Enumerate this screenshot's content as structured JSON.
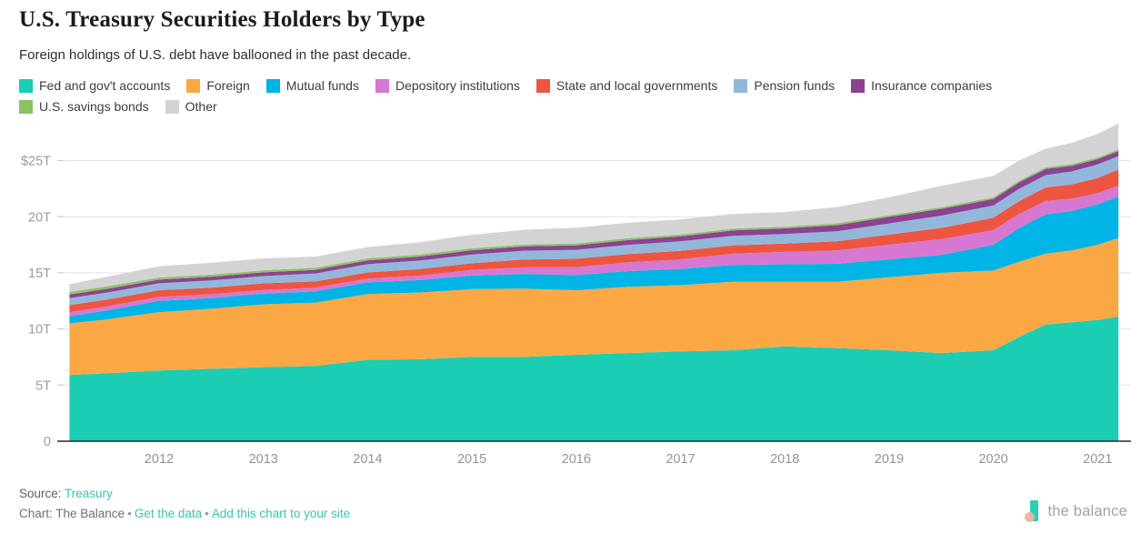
{
  "header": {
    "title": "U.S. Treasury Securities Holders by Type",
    "subtitle": "Foreign holdings of U.S. debt have ballooned in the past decade."
  },
  "chart_data": {
    "type": "area",
    "stacked": true,
    "units": "trillions of U.S. dollars",
    "x_years": [
      2011.14,
      2011.5,
      2012,
      2012.5,
      2013,
      2013.5,
      2014,
      2014.5,
      2015,
      2015.5,
      2016,
      2016.5,
      2017,
      2017.5,
      2018,
      2018.5,
      2019,
      2019.5,
      2020,
      2020.25,
      2020.5,
      2020.75,
      2021,
      2021.2
    ],
    "series": [
      {
        "name": "Fed and gov't accounts",
        "color": "#1bcdb3",
        "values": [
          5.9,
          6.05,
          6.3,
          6.45,
          6.6,
          6.7,
          7.25,
          7.3,
          7.5,
          7.5,
          7.7,
          7.85,
          8.0,
          8.1,
          8.45,
          8.3,
          8.1,
          7.85,
          8.1,
          9.3,
          10.4,
          10.6,
          10.8,
          11.1
        ]
      },
      {
        "name": "Foreign",
        "color": "#fba844",
        "values": [
          4.6,
          4.8,
          5.2,
          5.35,
          5.6,
          5.65,
          5.85,
          5.95,
          6.05,
          6.1,
          5.75,
          5.9,
          5.9,
          6.1,
          5.75,
          5.9,
          6.5,
          7.15,
          7.1,
          6.7,
          6.3,
          6.4,
          6.7,
          7.0
        ]
      },
      {
        "name": "Mutual funds",
        "color": "#00b4e5",
        "values": [
          0.62,
          0.8,
          1.0,
          0.95,
          0.95,
          1.0,
          1.05,
          1.1,
          1.2,
          1.3,
          1.35,
          1.4,
          1.45,
          1.5,
          1.56,
          1.6,
          1.6,
          1.6,
          2.3,
          3.0,
          3.5,
          3.5,
          3.6,
          3.7
        ]
      },
      {
        "name": "Depository institutions",
        "color": "#d678d2",
        "values": [
          0.38,
          0.36,
          0.35,
          0.34,
          0.33,
          0.33,
          0.33,
          0.4,
          0.5,
          0.6,
          0.7,
          0.78,
          0.85,
          1.0,
          1.1,
          1.2,
          1.3,
          1.4,
          1.3,
          1.25,
          1.2,
          1.1,
          1.0,
          0.95
        ]
      },
      {
        "name": "State and local governments",
        "color": "#ee5540",
        "values": [
          0.62,
          0.61,
          0.6,
          0.59,
          0.58,
          0.56,
          0.55,
          0.58,
          0.6,
          0.68,
          0.75,
          0.75,
          0.75,
          0.75,
          0.75,
          0.8,
          0.9,
          1.0,
          1.1,
          1.15,
          1.2,
          1.28,
          1.35,
          1.45
        ]
      },
      {
        "name": "Pension funds",
        "color": "#92b7da",
        "values": [
          0.62,
          0.62,
          0.62,
          0.64,
          0.65,
          0.7,
          0.74,
          0.76,
          0.78,
          0.79,
          0.8,
          0.82,
          0.85,
          0.85,
          0.85,
          0.9,
          1.0,
          1.1,
          1.1,
          1.1,
          1.1,
          1.15,
          1.2,
          1.2
        ]
      },
      {
        "name": "Insurance companies",
        "color": "#8c4293",
        "values": [
          0.33,
          0.33,
          0.32,
          0.33,
          0.33,
          0.33,
          0.34,
          0.36,
          0.38,
          0.39,
          0.4,
          0.42,
          0.45,
          0.48,
          0.5,
          0.55,
          0.58,
          0.6,
          0.58,
          0.57,
          0.55,
          0.5,
          0.47,
          0.45
        ]
      },
      {
        "name": "U.S. savings bonds",
        "color": "#8cc363",
        "values": [
          0.23,
          0.22,
          0.2,
          0.19,
          0.19,
          0.18,
          0.18,
          0.18,
          0.18,
          0.17,
          0.17,
          0.17,
          0.16,
          0.16,
          0.16,
          0.16,
          0.15,
          0.15,
          0.15,
          0.15,
          0.15,
          0.15,
          0.15,
          0.15
        ]
      },
      {
        "name": "Other",
        "color": "#d3d3d3",
        "values": [
          0.7,
          0.85,
          1.0,
          1.05,
          1.05,
          1.0,
          1.0,
          1.1,
          1.2,
          1.3,
          1.4,
          1.38,
          1.35,
          1.3,
          1.3,
          1.45,
          1.6,
          1.9,
          1.9,
          1.8,
          1.65,
          1.9,
          2.1,
          2.3
        ]
      }
    ],
    "y_ticks": [
      {
        "value": 25,
        "label": "$25T"
      },
      {
        "value": 20,
        "label": "20T"
      },
      {
        "value": 15,
        "label": "15T"
      },
      {
        "value": 10,
        "label": "10T"
      },
      {
        "value": 5,
        "label": "5T"
      },
      {
        "value": 0,
        "label": "0"
      }
    ],
    "x_ticks": [
      {
        "value": 2012,
        "label": "2012"
      },
      {
        "value": 2013,
        "label": "2013"
      },
      {
        "value": 2014,
        "label": "2014"
      },
      {
        "value": 2015,
        "label": "2015"
      },
      {
        "value": 2016,
        "label": "2016"
      },
      {
        "value": 2017,
        "label": "2017"
      },
      {
        "value": 2018,
        "label": "2018"
      },
      {
        "value": 2019,
        "label": "2019"
      },
      {
        "value": 2020,
        "label": "2020"
      },
      {
        "value": 2021,
        "label": "2021"
      }
    ],
    "ylim": [
      0,
      28.5
    ],
    "grid": true,
    "legend_position": "top"
  },
  "footer": {
    "source_label": "Source:",
    "source_link": "Treasury",
    "credit": "Chart: The Balance",
    "bullet": "•",
    "get_data": "Get the data",
    "embed": "Add this chart to your site"
  },
  "logo": {
    "text": "the balance"
  }
}
